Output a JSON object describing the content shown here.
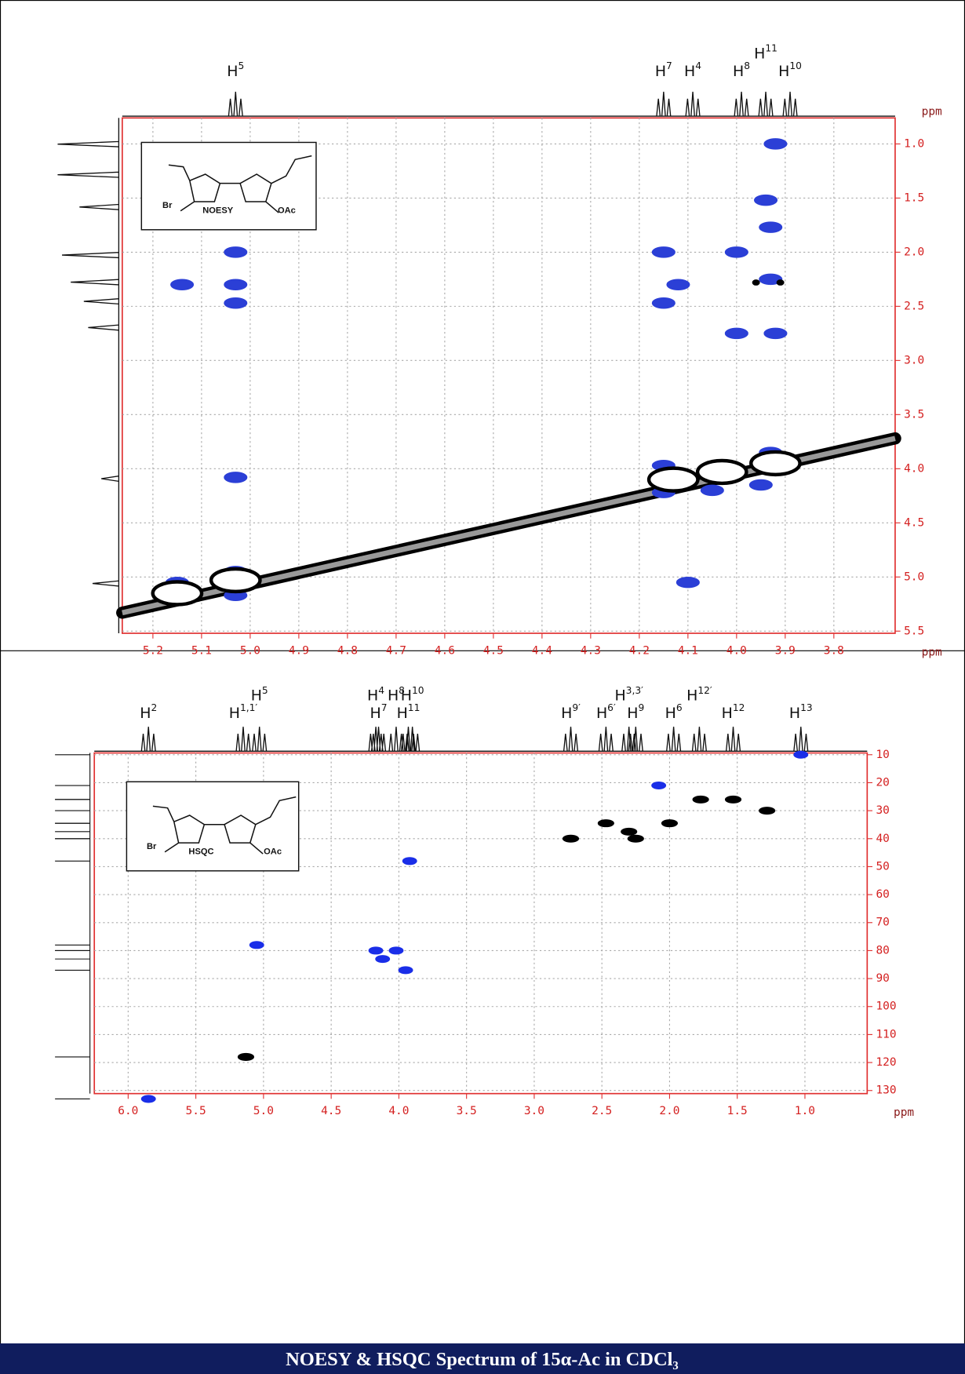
{
  "chart_data": [
    {
      "type": "scatter",
      "xlabel": "ppm",
      "ylabel": "ppm",
      "xlim": [
        5.263,
        3.674
      ],
      "ylim": [
        5.52,
        0.76
      ],
      "xticks": [
        5.2,
        5.1,
        {
          "value": 5,
          "label": "5.0"
        },
        4.9,
        4.8,
        4.7,
        4.6,
        4.5,
        4.4,
        4.3,
        4.2,
        4.1,
        {
          "value": 4,
          "label": "4.0"
        },
        3.9,
        3.8
      ],
      "yticks": [
        {
          "value": 1,
          "label": "1.0"
        },
        1.5,
        {
          "value": 2,
          "label": "2.0"
        },
        2.5,
        {
          "value": 3,
          "label": "3.0"
        },
        3.5,
        {
          "value": 4,
          "label": "4.0"
        },
        4.5,
        {
          "value": 5,
          "label": "5.0"
        },
        5.5
      ],
      "grid": true,
      "peak_labels": [
        {
          "text": "H",
          "sup": "5",
          "x": 5.03
        },
        {
          "text": "H",
          "sup": "7",
          "x": 4.15
        },
        {
          "text": "H",
          "sup": "4",
          "x": 4.09
        },
        {
          "text": "H",
          "sup": "8",
          "x": 3.99
        },
        {
          "text": "H",
          "sup": "11",
          "x": 3.94
        },
        {
          "text": "H",
          "sup": "10",
          "x": 3.89
        }
      ],
      "inset_labels": [
        "Br",
        "NOESY",
        "OAc"
      ],
      "lines": [
        {
          "color": "#000000",
          "x": [
            5.263,
            3.674
          ],
          "y": [
            5.33,
            3.72
          ]
        }
      ],
      "series": [
        {
          "color": "#2b3fd6",
          "x": [
            5.14,
            5.03,
            5.03,
            5.03,
            5.03,
            4.1,
            4.15,
            4.12,
            4.15,
            4.0,
            4.0,
            3.92,
            3.92,
            3.94,
            3.93,
            3.93,
            4.15,
            4.15,
            4.05,
            3.93,
            3.95,
            5.15,
            5.03,
            5.03
          ],
          "y": [
            2.3,
            2.0,
            2.3,
            2.47,
            4.08,
            5.05,
            2.0,
            2.3,
            2.47,
            2.0,
            2.75,
            2.75,
            1.0,
            1.52,
            1.77,
            2.25,
            3.97,
            4.22,
            4.2,
            3.85,
            4.15,
            5.05,
            4.95,
            5.17
          ]
        },
        {
          "color": "#000000",
          "x": [
            5.15,
            5.03,
            4.13,
            4.03,
            3.92
          ],
          "y": [
            5.15,
            5.03,
            4.1,
            4.03,
            3.95
          ]
        },
        {
          "color": "#000000",
          "x": [
            3.96,
            3.91
          ],
          "y": [
            2.28,
            2.28
          ]
        }
      ]
    },
    {
      "type": "scatter",
      "xlabel": "ppm",
      "xlim": [
        6.25,
        0.54
      ],
      "ylim": [
        131.1,
        9.37
      ],
      "xticks": [
        {
          "value": 6,
          "label": "6.0"
        },
        5.5,
        {
          "value": 5,
          "label": "5.0"
        },
        4.5,
        {
          "value": 4,
          "label": "4.0"
        },
        3.5,
        {
          "value": 3,
          "label": "3.0"
        },
        2.5,
        {
          "value": 2,
          "label": "2.0"
        },
        1.5,
        {
          "value": 1,
          "label": "1.0"
        }
      ],
      "yticks": [
        10,
        20,
        30,
        40,
        50,
        60,
        70,
        80,
        90,
        100,
        110,
        120,
        130
      ],
      "grid": true,
      "peak_labels": [
        {
          "text": "H",
          "sup": "2",
          "x": 5.85
        },
        {
          "text": "H",
          "sup": "1,1′",
          "x": 5.15
        },
        {
          "text": "H",
          "sup": "5",
          "x": 5.03
        },
        {
          "text": "H",
          "sup": "7",
          "x": 4.15
        },
        {
          "text": "H",
          "sup": "4",
          "x": 4.17
        },
        {
          "text": "H",
          "sup": "8",
          "x": 4.02
        },
        {
          "text": "H",
          "sup": "11",
          "x": 3.93
        },
        {
          "text": "H",
          "sup": "10",
          "x": 3.9
        },
        {
          "text": "H",
          "sup": "9′",
          "x": 2.73
        },
        {
          "text": "H",
          "sup": "6′",
          "x": 2.47
        },
        {
          "text": "H",
          "sup": "9",
          "x": 2.25
        },
        {
          "text": "H",
          "sup": "3,3′",
          "x": 2.3
        },
        {
          "text": "H",
          "sup": "6",
          "x": 1.97
        },
        {
          "text": "H",
          "sup": "12′",
          "x": 1.78
        },
        {
          "text": "H",
          "sup": "12",
          "x": 1.53
        },
        {
          "text": "H",
          "sup": "13",
          "x": 1.03
        }
      ],
      "inset_labels": [
        "Br",
        "HSQC",
        "OAc"
      ],
      "series": [
        {
          "color": "#1a2ee8",
          "x": [
            1.03,
            2.08,
            3.92,
            5.05,
            4.17,
            4.02,
            4.12,
            3.95,
            5.85
          ],
          "y": [
            10,
            21,
            48,
            78,
            80,
            80,
            83,
            87,
            133
          ]
        },
        {
          "color": "#000000",
          "x": [
            1.77,
            1.53,
            1.28,
            2.47,
            2.0,
            2.3,
            2.25,
            2.73,
            5.13
          ],
          "y": [
            26,
            26,
            30,
            34.5,
            34.5,
            37.5,
            40,
            40,
            118
          ]
        }
      ]
    }
  ],
  "caption": "NOESY & HSQC Spectrum of 15α-Ac in CDCl₃"
}
